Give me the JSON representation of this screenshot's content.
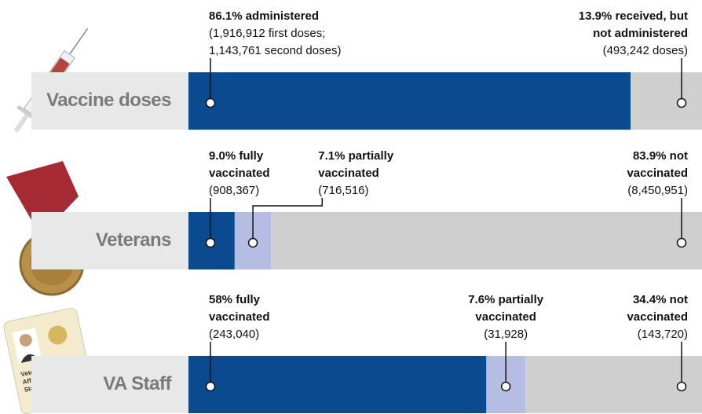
{
  "chart_data": [
    {
      "type": "stacked-bar",
      "title": "Vaccine doses",
      "xlim": [
        0,
        100
      ],
      "segments": [
        {
          "value": 86.1,
          "color": "#0c4a8f",
          "label": [
            "86.1% administered"
          ],
          "note": [
            "(1,916,912 first doses;",
            "1,143,761 second doses)"
          ]
        },
        {
          "value": 13.9,
          "color": "#cfcfcf",
          "label": [
            "13.9% received, but",
            "not administered"
          ],
          "note": [
            "(493,242 doses)"
          ]
        }
      ]
    },
    {
      "type": "stacked-bar",
      "title": "Veterans",
      "xlim": [
        0,
        100
      ],
      "segments": [
        {
          "value": 9.0,
          "color": "#0c4a8f",
          "label": [
            "9.0% fully",
            "vaccinated"
          ],
          "note": [
            "(908,367)"
          ]
        },
        {
          "value": 7.1,
          "color": "#b5bde3",
          "label": [
            "7.1% partially",
            "vaccinated"
          ],
          "note": [
            "(716,516)"
          ]
        },
        {
          "value": 83.9,
          "color": "#cfcfcf",
          "label": [
            "83.9% not",
            "vaccinated"
          ],
          "note": [
            "(8,450,951)"
          ]
        }
      ]
    },
    {
      "type": "stacked-bar",
      "title": "VA Staff",
      "xlim": [
        0,
        100
      ],
      "segments": [
        {
          "value": 58,
          "color": "#0c4a8f",
          "label": [
            "58% fully",
            "vaccinated"
          ],
          "note": [
            "(243,040)"
          ]
        },
        {
          "value": 7.6,
          "color": "#b5bde3",
          "label": [
            "7.6% partially",
            "vaccinated"
          ],
          "note": [
            "(31,928)"
          ]
        },
        {
          "value": 34.4,
          "color": "#cfcfcf",
          "label": [
            "34.4% not",
            "vaccinated"
          ],
          "note": [
            "(143,720)"
          ]
        }
      ]
    }
  ],
  "badge": [
    "Veteran",
    "Affairs",
    "Staff"
  ]
}
